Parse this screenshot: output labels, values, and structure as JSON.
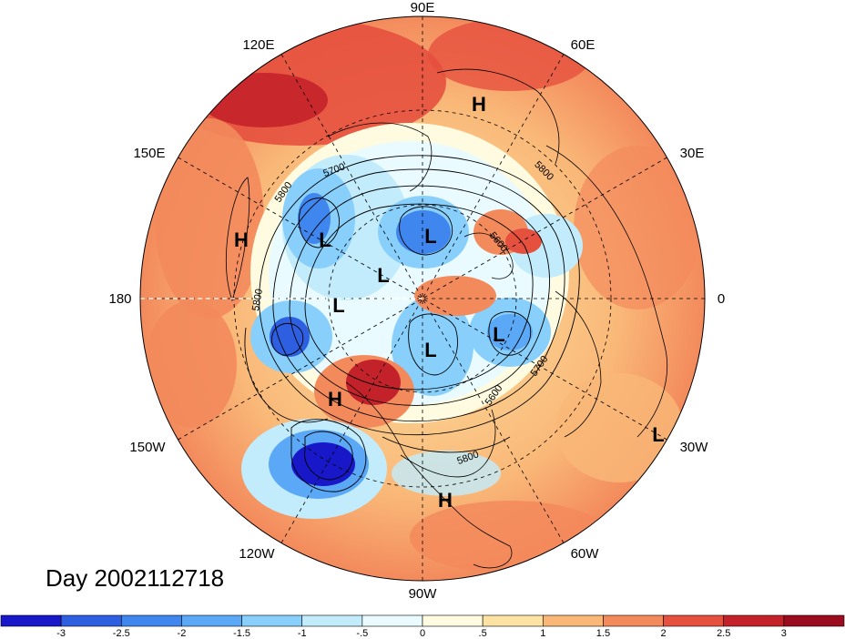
{
  "title": "Day 2002112718",
  "longitude_labels": [
    {
      "text": "90E"
    },
    {
      "text": "60E"
    },
    {
      "text": "30E"
    },
    {
      "text": "0"
    },
    {
      "text": "30W"
    },
    {
      "text": "60W"
    },
    {
      "text": "90W"
    },
    {
      "text": "120W"
    },
    {
      "text": "150W"
    },
    {
      "text": "180"
    },
    {
      "text": "150E"
    },
    {
      "text": "120E"
    }
  ],
  "pressure_centers": [
    {
      "type": "H"
    },
    {
      "type": "H"
    },
    {
      "type": "L"
    },
    {
      "type": "L"
    },
    {
      "type": "L"
    },
    {
      "type": "L"
    },
    {
      "type": "L"
    },
    {
      "type": "L"
    },
    {
      "type": "H"
    },
    {
      "type": "H"
    },
    {
      "type": "L"
    }
  ],
  "contour_labels": [
    "5700",
    "5800",
    "5800",
    "5600",
    "5800",
    "5700",
    "5600",
    "5800"
  ],
  "colorbar": {
    "ticks": [
      "-3",
      "-2.5",
      "-2",
      "-1.5",
      "-1",
      "-.5",
      "0",
      ".5",
      "1",
      "1.5",
      "2",
      "2.5",
      "3"
    ],
    "colors": [
      "#1818c8",
      "#2e5fe0",
      "#3f86ef",
      "#5aa8f6",
      "#88cffb",
      "#c2ecfc",
      "#e9fbfe",
      "#fffbe0",
      "#fde3a3",
      "#f9b878",
      "#f38a5c",
      "#e6503e",
      "#c4222a",
      "#9b0d1e"
    ]
  }
}
